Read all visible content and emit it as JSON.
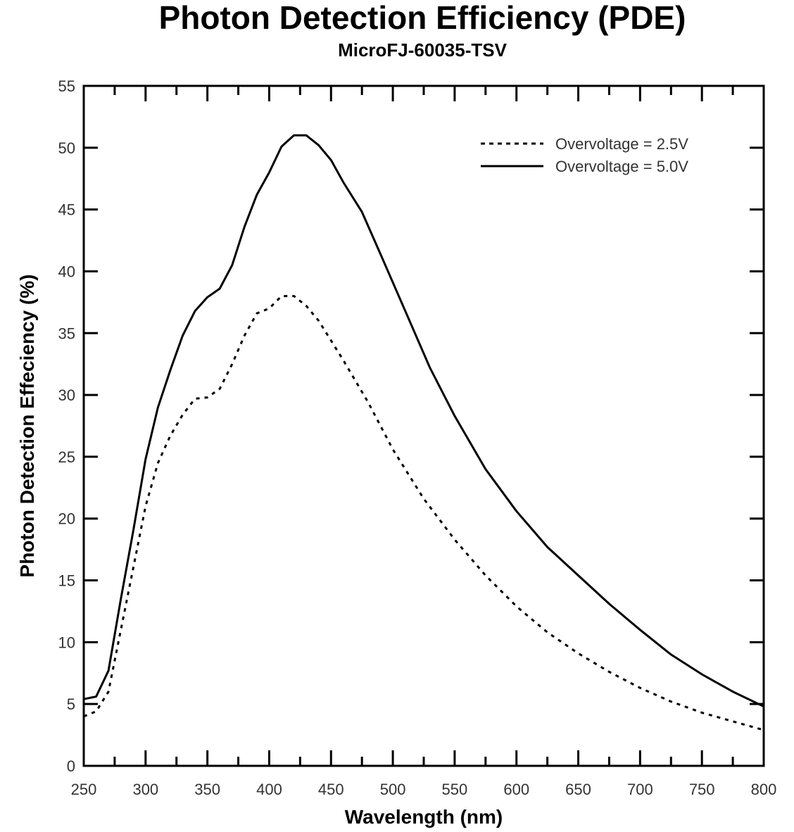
{
  "chart_data": {
    "type": "line",
    "title": "Photon Detection Efficiency (PDE)",
    "subtitle": "MicroFJ-60035-TSV",
    "xlabel": "Wavelength (nm)",
    "ylabel": "Photon Detection Effeciency (%)",
    "xlim": [
      250,
      800
    ],
    "ylim": [
      0,
      55
    ],
    "xticks": [
      250,
      300,
      350,
      400,
      450,
      500,
      550,
      600,
      650,
      700,
      750,
      800
    ],
    "yticks": [
      0,
      5,
      10,
      15,
      20,
      25,
      30,
      35,
      40,
      45,
      50,
      55
    ],
    "grid": false,
    "legend_position": "top-right",
    "series": [
      {
        "name": "Overvoltage = 2.5V",
        "style": "dotted",
        "color": "#000000",
        "x": [
          250,
          260,
          270,
          280,
          290,
          300,
          310,
          320,
          330,
          340,
          350,
          360,
          370,
          380,
          390,
          400,
          410,
          420,
          430,
          440,
          450,
          460,
          480,
          500,
          525,
          550,
          575,
          600,
          625,
          650,
          675,
          700,
          725,
          750,
          775,
          800
        ],
        "y": [
          4.0,
          4.4,
          6.0,
          11.0,
          16.0,
          21.0,
          24.5,
          26.7,
          28.4,
          29.7,
          29.8,
          30.5,
          32.5,
          34.8,
          36.6,
          37.0,
          38.0,
          38.0,
          37.2,
          36.0,
          34.4,
          32.8,
          29.4,
          25.6,
          21.6,
          18.3,
          15.4,
          12.9,
          10.8,
          9.1,
          7.6,
          6.3,
          5.2,
          4.3,
          3.6,
          2.9
        ]
      },
      {
        "name": "Overvoltage = 5.0V",
        "style": "solid",
        "color": "#000000",
        "x": [
          250,
          260,
          270,
          280,
          290,
          300,
          310,
          320,
          330,
          340,
          350,
          360,
          370,
          380,
          390,
          400,
          410,
          420,
          430,
          440,
          450,
          460,
          475,
          490,
          510,
          530,
          550,
          575,
          600,
          625,
          650,
          675,
          700,
          725,
          750,
          775,
          800
        ],
        "y": [
          5.4,
          5.6,
          7.7,
          13.5,
          19.0,
          24.8,
          29.0,
          32.0,
          34.8,
          36.8,
          37.9,
          38.6,
          40.5,
          43.6,
          46.2,
          48.0,
          50.1,
          51.0,
          51.0,
          50.2,
          49.0,
          47.2,
          44.8,
          41.4,
          36.8,
          32.2,
          28.3,
          24.0,
          20.6,
          17.7,
          15.4,
          13.1,
          11.0,
          9.0,
          7.4,
          6.0,
          4.8
        ]
      }
    ]
  }
}
